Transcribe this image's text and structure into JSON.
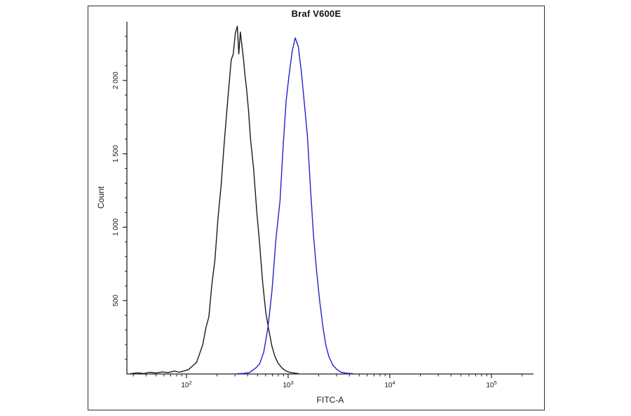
{
  "figure": {
    "background": "#ffffff",
    "panel_border_color": "#2e2e2e"
  },
  "chart_data": {
    "type": "line",
    "subtype": "flow-cytometry-histogram-overlay",
    "title": "Braf V600E",
    "xlabel": "FITC-A",
    "ylabel": "Count",
    "x_scale": "log10",
    "xlim_log10": [
      1.414,
      5.414
    ],
    "ylim": [
      0,
      2400
    ],
    "grid": false,
    "legend": "none",
    "axis_color": "#222222",
    "xticks": [
      {
        "log10": 2,
        "base": "10",
        "exp": "2"
      },
      {
        "log10": 3,
        "base": "10",
        "exp": "3"
      },
      {
        "log10": 4,
        "base": "10",
        "exp": "4"
      },
      {
        "log10": 5,
        "base": "10",
        "exp": "5"
      }
    ],
    "yticks": [
      {
        "value": 500,
        "label": "500"
      },
      {
        "value": 1000,
        "label": "1 000"
      },
      {
        "value": 1500,
        "label": "1 500"
      },
      {
        "value": 2000,
        "label": "2 000"
      }
    ],
    "series": [
      {
        "id": "black-curve",
        "color": "#1b1b1b",
        "stroke_width": 1.4,
        "points_log10x_count": [
          [
            1.45,
            2
          ],
          [
            1.52,
            8
          ],
          [
            1.58,
            3
          ],
          [
            1.64,
            12
          ],
          [
            1.7,
            6
          ],
          [
            1.76,
            14
          ],
          [
            1.82,
            9
          ],
          [
            1.88,
            20
          ],
          [
            1.93,
            12
          ],
          [
            1.98,
            22
          ],
          [
            2.02,
            30
          ],
          [
            2.06,
            55
          ],
          [
            2.1,
            80
          ],
          [
            2.13,
            140
          ],
          [
            2.16,
            200
          ],
          [
            2.19,
            310
          ],
          [
            2.22,
            390
          ],
          [
            2.25,
            610
          ],
          [
            2.28,
            780
          ],
          [
            2.31,
            1060
          ],
          [
            2.34,
            1280
          ],
          [
            2.37,
            1560
          ],
          [
            2.4,
            1820
          ],
          [
            2.42,
            1980
          ],
          [
            2.44,
            2140
          ],
          [
            2.46,
            2180
          ],
          [
            2.48,
            2320
          ],
          [
            2.5,
            2370
          ],
          [
            2.515,
            2180
          ],
          [
            2.53,
            2330
          ],
          [
            2.545,
            2240
          ],
          [
            2.56,
            2150
          ],
          [
            2.575,
            2040
          ],
          [
            2.59,
            1950
          ],
          [
            2.61,
            1800
          ],
          [
            2.63,
            1600
          ],
          [
            2.66,
            1400
          ],
          [
            2.69,
            1120
          ],
          [
            2.72,
            880
          ],
          [
            2.75,
            620
          ],
          [
            2.78,
            420
          ],
          [
            2.81,
            300
          ],
          [
            2.84,
            190
          ],
          [
            2.87,
            120
          ],
          [
            2.9,
            75
          ],
          [
            2.94,
            40
          ],
          [
            2.98,
            20
          ],
          [
            3.02,
            10
          ],
          [
            3.06,
            6
          ],
          [
            3.1,
            3
          ]
        ]
      },
      {
        "id": "blue-curve",
        "color": "#2222cc",
        "stroke_width": 1.4,
        "points_log10x_count": [
          [
            2.5,
            2
          ],
          [
            2.56,
            4
          ],
          [
            2.62,
            10
          ],
          [
            2.68,
            40
          ],
          [
            2.72,
            70
          ],
          [
            2.76,
            150
          ],
          [
            2.8,
            310
          ],
          [
            2.84,
            560
          ],
          [
            2.88,
            920
          ],
          [
            2.92,
            1180
          ],
          [
            2.95,
            1540
          ],
          [
            2.98,
            1860
          ],
          [
            3.01,
            2040
          ],
          [
            3.04,
            2200
          ],
          [
            3.07,
            2290
          ],
          [
            3.1,
            2230
          ],
          [
            3.13,
            2060
          ],
          [
            3.16,
            1840
          ],
          [
            3.19,
            1620
          ],
          [
            3.22,
            1260
          ],
          [
            3.25,
            940
          ],
          [
            3.28,
            700
          ],
          [
            3.31,
            500
          ],
          [
            3.34,
            330
          ],
          [
            3.37,
            200
          ],
          [
            3.4,
            120
          ],
          [
            3.44,
            60
          ],
          [
            3.48,
            30
          ],
          [
            3.52,
            12
          ],
          [
            3.58,
            5
          ],
          [
            3.64,
            2
          ]
        ]
      }
    ]
  }
}
